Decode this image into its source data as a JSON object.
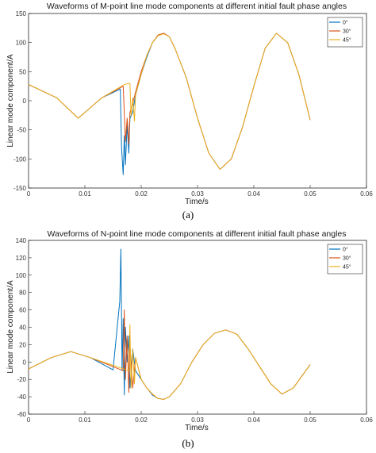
{
  "chart_data": [
    {
      "type": "line",
      "title": "Waveforms of M-point line mode components at different initial fault phase angles",
      "xlabel": "Time/s",
      "ylabel": "Linear mode component/A",
      "xlim": [
        0,
        0.06
      ],
      "ylim": [
        -150,
        150
      ],
      "xticks": [
        "0",
        "0.01",
        "0.02",
        "0.03",
        "0.04",
        "0.05",
        "0.06"
      ],
      "yticks": [
        "150",
        "100",
        "50",
        "0",
        "-50",
        "-100",
        "-150"
      ],
      "legend": "top-right",
      "grid": false,
      "caption": "(a)",
      "series": [
        {
          "name": "0°",
          "color": "#0072BD",
          "x": [
            0.0,
            0.005,
            0.0088,
            0.013,
            0.0163,
            0.0165,
            0.0168,
            0.017,
            0.0172,
            0.0175,
            0.0178,
            0.018,
            0.0185,
            0.019,
            0.02,
            0.021,
            0.022,
            0.023,
            0.024,
            0.025,
            0.026,
            0.028,
            0.03,
            0.032,
            0.034,
            0.036,
            0.038,
            0.04,
            0.042,
            0.044,
            0.046,
            0.048,
            0.05
          ],
          "y": [
            28,
            5,
            -30,
            5,
            20,
            -80,
            -127,
            -60,
            -110,
            -40,
            -90,
            -30,
            -20,
            10,
            45,
            75,
            100,
            112,
            116,
            110,
            90,
            40,
            -30,
            -90,
            -118,
            -100,
            -45,
            25,
            90,
            116,
            100,
            45,
            -33
          ]
        },
        {
          "name": "30°",
          "color": "#D95319",
          "x": [
            0.0,
            0.005,
            0.0088,
            0.013,
            0.0168,
            0.017,
            0.0172,
            0.0175,
            0.0178,
            0.018,
            0.0185,
            0.019,
            0.02,
            0.021,
            0.022,
            0.023,
            0.024,
            0.025,
            0.026,
            0.028,
            0.03,
            0.032,
            0.034,
            0.036,
            0.038,
            0.04,
            0.042,
            0.044,
            0.046,
            0.048,
            0.05
          ],
          "y": [
            28,
            5,
            -30,
            5,
            25,
            -20,
            -70,
            -30,
            -75,
            -20,
            -5,
            15,
            50,
            78,
            100,
            113,
            116,
            110,
            90,
            40,
            -30,
            -90,
            -118,
            -100,
            -45,
            25,
            90,
            116,
            100,
            45,
            -33
          ]
        },
        {
          "name": "45°",
          "color": "#EDB120",
          "x": [
            0.0,
            0.005,
            0.0088,
            0.013,
            0.017,
            0.018,
            0.0182,
            0.0185,
            0.0188,
            0.019,
            0.02,
            0.021,
            0.022,
            0.023,
            0.024,
            0.025,
            0.026,
            0.028,
            0.03,
            0.032,
            0.034,
            0.036,
            0.038,
            0.04,
            0.042,
            0.044,
            0.046,
            0.048,
            0.05
          ],
          "y": [
            28,
            5,
            -30,
            5,
            28,
            30,
            -25,
            5,
            -35,
            10,
            45,
            78,
            100,
            112,
            115,
            110,
            90,
            40,
            -30,
            -90,
            -118,
            -100,
            -45,
            25,
            90,
            116,
            100,
            45,
            -33
          ]
        }
      ]
    },
    {
      "type": "line",
      "title": "Waveforms of N-point line mode components at different initial fault phase angles",
      "xlabel": "Time/s",
      "ylabel": "Linear mode component/A",
      "xlim": [
        0,
        0.06
      ],
      "ylim": [
        -60,
        140
      ],
      "xticks": [
        "0",
        "0.01",
        "0.02",
        "0.03",
        "0.04",
        "0.05",
        "0.06"
      ],
      "yticks": [
        "140",
        "120",
        "100",
        "80",
        "60",
        "40",
        "20",
        "0",
        "-20",
        "-40",
        "-60"
      ],
      "legend": "top-right",
      "grid": false,
      "caption": "(b)",
      "series": [
        {
          "name": "0°",
          "color": "#0072BD",
          "x": [
            0.0,
            0.004,
            0.0075,
            0.011,
            0.015,
            0.0162,
            0.0164,
            0.0166,
            0.0168,
            0.017,
            0.0172,
            0.0175,
            0.0178,
            0.018,
            0.0185,
            0.019,
            0.02,
            0.021,
            0.022,
            0.023,
            0.024,
            0.025,
            0.027,
            0.029,
            0.031,
            0.033,
            0.035,
            0.037,
            0.039,
            0.041,
            0.043,
            0.045,
            0.047,
            0.049,
            0.05
          ],
          "y": [
            -8,
            5,
            12,
            5,
            -9,
            70,
            130,
            -10,
            50,
            -38,
            40,
            0,
            30,
            -30,
            15,
            -10,
            -20,
            -30,
            -38,
            -42,
            -43,
            -40,
            -25,
            0,
            20,
            33,
            37,
            32,
            15,
            -5,
            -25,
            -37,
            -30,
            -12,
            -3
          ]
        },
        {
          "name": "30°",
          "color": "#D95319",
          "x": [
            0.0,
            0.004,
            0.0075,
            0.011,
            0.0168,
            0.017,
            0.0172,
            0.0175,
            0.0178,
            0.018,
            0.0185,
            0.019,
            0.02,
            0.021,
            0.022,
            0.023,
            0.024,
            0.025,
            0.027,
            0.029,
            0.031,
            0.033,
            0.035,
            0.037,
            0.039,
            0.041,
            0.043,
            0.045,
            0.047,
            0.049,
            0.05
          ],
          "y": [
            -8,
            5,
            12,
            5,
            -10,
            60,
            -20,
            30,
            -35,
            20,
            -30,
            5,
            -20,
            -30,
            -37,
            -42,
            -43,
            -40,
            -25,
            0,
            20,
            33,
            37,
            32,
            15,
            -5,
            -25,
            -37,
            -30,
            -12,
            -3
          ]
        },
        {
          "name": "45°",
          "color": "#EDB120",
          "x": [
            0.0,
            0.004,
            0.0075,
            0.011,
            0.0178,
            0.018,
            0.0182,
            0.0185,
            0.0188,
            0.019,
            0.02,
            0.021,
            0.022,
            0.023,
            0.024,
            0.025,
            0.027,
            0.029,
            0.031,
            0.033,
            0.035,
            0.037,
            0.039,
            0.041,
            0.043,
            0.045,
            0.047,
            0.049,
            0.05
          ],
          "y": [
            -8,
            5,
            12,
            5,
            -10,
            43,
            -30,
            15,
            -25,
            5,
            -20,
            -30,
            -37,
            -42,
            -43,
            -40,
            -25,
            0,
            20,
            33,
            37,
            32,
            15,
            -5,
            -25,
            -37,
            -30,
            -12,
            -3
          ]
        }
      ]
    }
  ]
}
